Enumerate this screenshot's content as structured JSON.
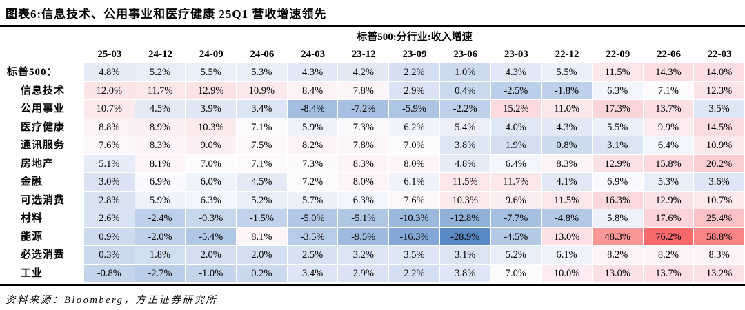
{
  "title": "图表6:信息技术、公用事业和医疗健康 25Q1 营收增速领先",
  "source": "资料来源：Bloomberg，方正证券研究所",
  "chart_data": {
    "type": "heatmap",
    "title": "标普500:分行业:收入增速",
    "value_suffix": "%",
    "columns": [
      "25-03",
      "24-12",
      "24-09",
      "24-06",
      "24-03",
      "23-12",
      "23-09",
      "23-06",
      "23-03",
      "22-12",
      "22-09",
      "22-06",
      "22-03"
    ],
    "rows": [
      {
        "label": "标普500：",
        "indent": false,
        "values": [
          4.8,
          5.2,
          5.5,
          5.3,
          4.3,
          4.2,
          2.2,
          1.0,
          4.3,
          5.5,
          11.5,
          14.3,
          14.0
        ]
      },
      {
        "label": "信息技术",
        "indent": true,
        "values": [
          12.0,
          11.7,
          12.9,
          10.9,
          8.4,
          7.8,
          2.9,
          0.4,
          -2.5,
          -1.8,
          6.3,
          7.1,
          12.3
        ]
      },
      {
        "label": "公用事业",
        "indent": true,
        "values": [
          10.7,
          4.5,
          3.9,
          3.4,
          -8.4,
          -7.2,
          -5.9,
          -2.2,
          15.2,
          11.0,
          17.3,
          13.7,
          3.5
        ]
      },
      {
        "label": "医疗健康",
        "indent": true,
        "values": [
          8.8,
          8.9,
          10.3,
          7.1,
          5.9,
          7.3,
          6.2,
          5.4,
          4.0,
          4.3,
          5.5,
          9.9,
          14.5
        ]
      },
      {
        "label": "通讯服务",
        "indent": true,
        "values": [
          7.6,
          8.3,
          9.0,
          7.5,
          8.2,
          7.8,
          7.0,
          3.8,
          1.9,
          0.8,
          3.1,
          6.4,
          10.9
        ]
      },
      {
        "label": "房地产",
        "indent": true,
        "values": [
          5.1,
          8.1,
          7.0,
          7.1,
          7.3,
          8.3,
          8.0,
          4.8,
          6.4,
          8.3,
          12.9,
          15.8,
          20.2
        ]
      },
      {
        "label": "金融",
        "indent": true,
        "values": [
          3.0,
          6.9,
          6.0,
          4.5,
          7.2,
          8.0,
          6.1,
          11.5,
          11.7,
          4.1,
          6.9,
          5.3,
          3.6
        ]
      },
      {
        "label": "可选消费",
        "indent": true,
        "values": [
          2.8,
          5.9,
          6.3,
          5.2,
          5.7,
          6.3,
          7.6,
          10.3,
          9.6,
          11.5,
          16.3,
          12.9,
          10.7
        ]
      },
      {
        "label": "材料",
        "indent": true,
        "values": [
          2.6,
          -2.4,
          -0.3,
          -1.5,
          -5.0,
          -5.1,
          -10.3,
          -12.8,
          -7.7,
          -4.8,
          5.8,
          17.6,
          25.4
        ]
      },
      {
        "label": "能源",
        "indent": true,
        "values": [
          0.9,
          -2.0,
          -5.4,
          8.1,
          -3.5,
          -9.5,
          -16.3,
          -28.9,
          -4.5,
          13.0,
          48.3,
          76.2,
          58.8
        ]
      },
      {
        "label": "必选消费",
        "indent": true,
        "values": [
          0.3,
          1.8,
          2.0,
          2.0,
          2.5,
          3.2,
          3.5,
          3.1,
          5.2,
          6.1,
          8.2,
          8.2,
          8.3
        ]
      },
      {
        "label": "工业",
        "indent": true,
        "values": [
          -0.8,
          -2.7,
          -1.0,
          0.2,
          3.4,
          2.9,
          2.2,
          3.8,
          7.0,
          10.0,
          13.0,
          13.7,
          13.2
        ]
      }
    ],
    "colormap": {
      "min_value": -28.9,
      "mid_value": 7.0,
      "max_value": 76.2,
      "min_color": "#5A8AC6",
      "mid_color": "#FCFCFF",
      "max_color": "#F8696B",
      "gamma": 0.7
    },
    "layout": {
      "grid": false,
      "legend": false
    }
  }
}
